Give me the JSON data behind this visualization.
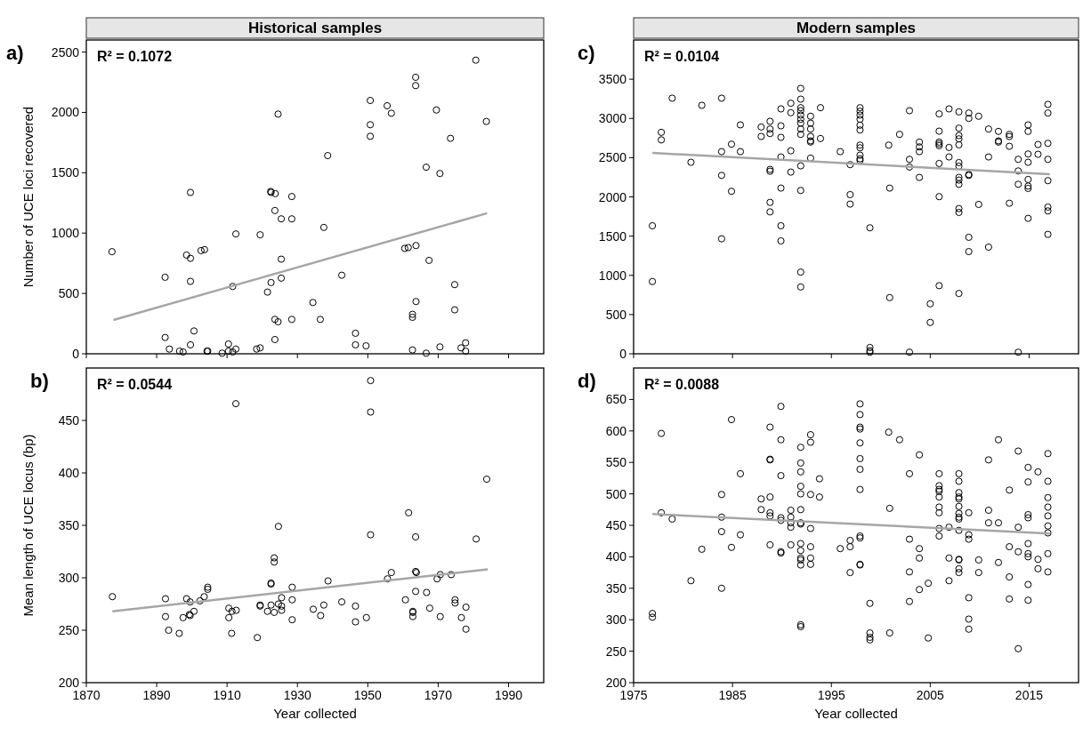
{
  "chart_data": [
    {
      "type": "scatter",
      "title": "Historical samples",
      "ylabel": "Number of UCE loci recovered",
      "annotations": [
        "a)",
        "R² = 0.1072"
      ],
      "xlim": [
        1870,
        2000
      ],
      "xticks": [
        1870,
        1890,
        1910,
        1930,
        1950,
        1970,
        1990
      ],
      "ylim": [
        0,
        2600
      ],
      "yticks": [
        0,
        500,
        1000,
        1500,
        2000,
        2500
      ],
      "tick_labels": "y",
      "series": [
        {
          "marker": "circle",
          "color": "#000000",
          "x": [
            1877.3,
            1892.4,
            1899.6,
            1898.5,
            1899.6,
            1899.6,
            1902.6,
            1903.6,
            1912.5,
            1911.6,
            1919.4,
            1922.4,
            1922.5,
            1923.7,
            1928.4,
            1923.6,
            1925.4,
            1928.4,
            1924.5,
            1938.6,
            1937.5,
            1925.4,
            1925.4,
            1922.5,
            1921.5,
            1934.4,
            1942.6,
            1923.6,
            1924.5,
            1928.4,
            1936.5,
            1923.6,
            1892.4,
            1900.6,
            1893.6,
            1896.5,
            1897.5,
            1899.6,
            1904.3,
            1904.5,
            1908.6,
            1910.4,
            1910.4,
            1911.6,
            1912.5,
            1918.4,
            1919.4,
            1946.5,
            1946.5,
            1949.5,
            1950.7,
            1950.7,
            1950.7,
            1955.5,
            1956.7,
            1963.6,
            1963.6,
            1969.5,
            1980.7,
            1983.7,
            1973.5,
            1966.6,
            1970.5,
            1960.5,
            1961.5,
            1963.7,
            1967.4,
            1963.7,
            1962.7,
            1962.7,
            1974.7,
            1974.7,
            1962.7,
            1966.6,
            1970.5,
            1976.5,
            1977.8,
            1977.8
          ],
          "values": [
            846,
            634,
            1337,
            818,
            791,
            600,
            855,
            863,
            993,
            558,
            986,
            1345,
            1337,
            1327,
            1303,
            1187,
            1118,
            1118,
            1986,
            1642,
            1047,
            784,
            627,
            590,
            511,
            425,
            651,
            285,
            265,
            285,
            285,
            118,
            135,
            189,
            39,
            22,
            15,
            74,
            22,
            22,
            5,
            81,
            22,
            15,
            39,
            39,
            49,
            170,
            74,
            66,
            2099,
            1898,
            1802,
            2055,
            1993,
            2291,
            2222,
            2020,
            2433,
            1925,
            1785,
            1546,
            1494,
            873,
            880,
            897,
            774,
            433,
            327,
            302,
            573,
            364,
            32,
            5,
            57,
            49,
            91,
            22
          ]
        },
        {
          "type": "line",
          "marker": "none",
          "color": "#a6a6a6",
          "x": [
            1877.7,
            1983.9
          ],
          "values": [
            280,
            1165
          ]
        }
      ]
    },
    {
      "type": "scatter",
      "xlabel": "Year collected",
      "ylabel": "Mean length of UCE locus (bp)",
      "annotations": [
        "b)",
        "R² = 0.0544"
      ],
      "xlim": [
        1870,
        2000
      ],
      "xticks": [
        1870,
        1890,
        1910,
        1930,
        1950,
        1970,
        1990
      ],
      "ylim": [
        200,
        500
      ],
      "yticks": [
        200,
        250,
        300,
        350,
        400,
        450
      ],
      "series": [
        {
          "marker": "circle",
          "color": "#000000",
          "x": [
            1877.4,
            1912.5,
            1950.8,
            1950.8,
            1983.8,
            1961.6,
            1963.6,
            1950.8,
            1980.8,
            1924.6,
            1923.4,
            1923.4,
            1922.5,
            1922.5,
            1928.5,
            1904.5,
            1904.5,
            1903.5,
            1902.3,
            1898.5,
            1899.5,
            1892.5,
            1892.5,
            1893.4,
            1896.4,
            1897.5,
            1899.3,
            1899.5,
            1900.6,
            1910.5,
            1910.5,
            1911.4,
            1912.6,
            1911.3,
            1918.6,
            1919.4,
            1919.4,
            1921.5,
            1922.5,
            1923.4,
            1924.6,
            1925.5,
            1925.5,
            1925.5,
            1928.5,
            1928.5,
            1934.5,
            1936.6,
            1937.5,
            1938.7,
            1942.6,
            1946.5,
            1946.5,
            1949.6,
            1955.6,
            1956.7,
            1960.7,
            1962.8,
            1962.8,
            1962.8,
            1963.6,
            1963.8,
            1963.6,
            1966.7,
            1967.6,
            1969.7,
            1970.6,
            1970.6,
            1973.7,
            1974.8,
            1974.8,
            1977.9,
            1976.6,
            1977.9
          ],
          "values": [
            282,
            466,
            488,
            458,
            394,
            362,
            339,
            341,
            337,
            349,
            319,
            315,
            295,
            294,
            291,
            291,
            289,
            282,
            278,
            280,
            277,
            280,
            263,
            250,
            247,
            262,
            265,
            264,
            268,
            271,
            262,
            268,
            269,
            247,
            243,
            274,
            273,
            268,
            274,
            267,
            275,
            281,
            273,
            269,
            279,
            260,
            270,
            264,
            274,
            297,
            277,
            273,
            258,
            262,
            299,
            305,
            279,
            268,
            267,
            263,
            306,
            305,
            287,
            286,
            271,
            299,
            303,
            263,
            303,
            279,
            276,
            272,
            262,
            251
          ]
        },
        {
          "type": "line",
          "marker": "none",
          "color": "#a6a6a6",
          "x": [
            1877.4,
            1984.1
          ],
          "values": [
            268,
            308
          ]
        }
      ]
    },
    {
      "type": "scatter",
      "title": "Modern samples",
      "annotations": [
        "c)",
        "R² = 0.0104"
      ],
      "xlim": [
        1975,
        2020
      ],
      "xticks": [
        1975,
        1985,
        1995,
        2005,
        2015
      ],
      "ylim": [
        0,
        4000
      ],
      "yticks": [
        0,
        500,
        1000,
        1500,
        2000,
        2500,
        3000,
        3500
      ],
      "tick_labels": "y",
      "series": [
        {
          "marker": "circle",
          "color": "#000000",
          "x": [
            1976.9,
            1976.9,
            1977.8,
            1977.8,
            1978.9,
            1980.8,
            1981.9,
            1983.9,
            1983.9,
            1983.9,
            1983.9,
            1984.9,
            1984.9,
            1985.8,
            1985.8,
            1987.9,
            1987.9,
            1988.8,
            1988.8,
            1988.8,
            1988.8,
            1988.8,
            1988.8,
            1988.8,
            1989.9,
            1989.9,
            1989.9,
            1989.9,
            1989.9,
            1989.9,
            1989.9,
            1990.9,
            1990.9,
            1990.9,
            1990.9,
            1991.9,
            1991.9,
            1991.9,
            1991.9,
            1991.9,
            1991.9,
            1991.9,
            1991.9,
            1991.9,
            1991.9,
            1991.9,
            1991.9,
            1991.9,
            1992.9,
            1992.9,
            1992.9,
            1992.9,
            1992.9,
            1992.9,
            1992.9,
            1993.9,
            1993.9,
            1995.9,
            1996.9,
            1996.9,
            1996.9,
            1997.9,
            1997.9,
            1997.9,
            1997.9,
            1997.9,
            1997.9,
            1997.9,
            1997.9,
            1997.9,
            1997.9,
            1997.9,
            1998.9,
            1998.9,
            1998.9,
            1998.9,
            2000.8,
            2000.9,
            2000.9,
            2001.9,
            2002.9,
            2002.9,
            2002.9,
            2002.9,
            2003.9,
            2003.9,
            2003.9,
            2003.9,
            2005.0,
            2005.0,
            2005.9,
            2005.9,
            2005.9,
            2005.9,
            2005.9,
            2005.9,
            2005.9,
            2005.9,
            2006.9,
            2006.9,
            2006.9,
            2007.9,
            2007.9,
            2007.9,
            2007.9,
            2007.9,
            2007.9,
            2007.9,
            2007.9,
            2007.9,
            2007.9,
            2007.9,
            2007.9,
            2007.9,
            2008.9,
            2008.9,
            2008.9,
            2008.9,
            2008.9,
            2008.9,
            2009.9,
            2009.9,
            2010.9,
            2010.9,
            2010.9,
            2011.9,
            2011.9,
            2011.9,
            2013.0,
            2013.0,
            2013.0,
            2013.0,
            2013.9,
            2013.9,
            2013.9,
            2013.9,
            2014.9,
            2014.9,
            2014.9,
            2014.9,
            2014.9,
            2014.9,
            2014.9,
            2014.9,
            2015.9,
            2015.9,
            2016.9,
            2016.9,
            2016.9,
            2016.9,
            2016.9,
            2016.9,
            2016.9,
            2016.9
          ],
          "values": [
            1632,
            921,
            2823,
            2727,
            3258,
            2441,
            3167,
            3258,
            2577,
            2274,
            1466,
            2672,
            2071,
            2918,
            2577,
            2891,
            2770,
            2963,
            2865,
            2808,
            2350,
            2327,
            1930,
            1809,
            3122,
            2906,
            2759,
            2509,
            2112,
            1632,
            1439,
            3194,
            3073,
            2588,
            2316,
            3383,
            3246,
            3137,
            3099,
            3043,
            2990,
            2940,
            2865,
            2797,
            2396,
            2082,
            1041,
            852,
            3028,
            2940,
            2865,
            2770,
            2714,
            2699,
            2494,
            3137,
            2744,
            2577,
            2411,
            2029,
            1908,
            3137,
            3092,
            3043,
            2990,
            2914,
            2853,
            2660,
            2626,
            2532,
            2486,
            2464,
            1606,
            80,
            40,
            20,
            2660,
            2112,
            716,
            2797,
            3099,
            2479,
            2381,
            20,
            2699,
            2637,
            2577,
            2248,
            637,
            399,
            3058,
            2838,
            2699,
            2676,
            2653,
            2426,
            2003,
            868,
            3122,
            2630,
            2509,
            3084,
            2876,
            2782,
            2740,
            2664,
            2437,
            2392,
            2248,
            2214,
            2161,
            1851,
            1802,
            769,
            3069,
            3001,
            2286,
            2274,
            1485,
            1303,
            3028,
            1904,
            2865,
            2509,
            1360,
            2835,
            2714,
            2699,
            2797,
            2770,
            2645,
            1919,
            2479,
            2331,
            2161,
            20,
            2918,
            2835,
            2547,
            2441,
            2222,
            2138,
            2108,
            1726,
            2668,
            2543,
            3179,
            3069,
            2683,
            2479,
            2207,
            1870,
            1821,
            1522
          ]
        },
        {
          "type": "line",
          "marker": "none",
          "color": "#a6a6a6",
          "x": [
            1976.9,
            2017.1
          ],
          "values": [
            2560,
            2290
          ]
        }
      ]
    },
    {
      "type": "scatter",
      "xlabel": "Year collected",
      "annotations": [
        "d)",
        "R² = 0.0088"
      ],
      "xlim": [
        1975,
        2020
      ],
      "xticks": [
        1975,
        1985,
        1995,
        2005,
        2015
      ],
      "ylim": [
        200,
        700
      ],
      "yticks": [
        200,
        250,
        300,
        350,
        400,
        450,
        500,
        550,
        600,
        650
      ],
      "series": [
        {
          "marker": "circle",
          "color": "#000000",
          "x": [
            1976.9,
            1976.9,
            1977.8,
            1977.8,
            1978.9,
            1980.8,
            1981.9,
            1983.9,
            1983.9,
            1983.9,
            1983.9,
            1984.9,
            1984.9,
            1985.8,
            1985.8,
            1987.9,
            1987.9,
            1988.8,
            1988.8,
            1988.8,
            1988.8,
            1988.8,
            1988.8,
            1988.8,
            1989.9,
            1989.9,
            1989.9,
            1989.9,
            1989.9,
            1989.9,
            1989.9,
            1990.9,
            1990.9,
            1990.9,
            1990.9,
            1990.9,
            1991.9,
            1991.9,
            1991.9,
            1991.9,
            1991.9,
            1991.9,
            1991.9,
            1991.9,
            1991.9,
            1991.9,
            1991.9,
            1991.9,
            1991.9,
            1991.9,
            1991.9,
            1992.9,
            1992.9,
            1992.9,
            1992.9,
            1992.9,
            1992.9,
            1992.9,
            1993.8,
            1993.8,
            1995.9,
            1996.9,
            1996.9,
            1996.9,
            1997.9,
            1997.9,
            1997.9,
            1997.9,
            1997.9,
            1997.9,
            1997.9,
            1997.9,
            1997.9,
            1997.9,
            1997.9,
            1997.9,
            1998.9,
            1998.9,
            1998.9,
            1998.9,
            2000.8,
            2000.9,
            2000.9,
            2001.9,
            2002.9,
            2002.9,
            2002.9,
            2002.9,
            2003.9,
            2003.9,
            2003.9,
            2003.9,
            2004.8,
            2004.8,
            2005.9,
            2005.9,
            2005.9,
            2005.9,
            2005.9,
            2005.9,
            2005.9,
            2005.9,
            2005.9,
            2006.9,
            2006.9,
            2006.9,
            2007.9,
            2007.9,
            2007.9,
            2007.9,
            2007.9,
            2007.9,
            2007.9,
            2007.9,
            2007.9,
            2007.9,
            2007.9,
            2007.9,
            2007.9,
            2007.9,
            2008.9,
            2008.9,
            2008.9,
            2008.9,
            2008.9,
            2008.9,
            2009.9,
            2009.9,
            2010.9,
            2010.9,
            2010.9,
            2011.9,
            2011.9,
            2011.9,
            2013.0,
            2013.0,
            2013.0,
            2013.0,
            2013.9,
            2013.9,
            2013.9,
            2013.9,
            2014.9,
            2014.9,
            2014.9,
            2014.9,
            2014.9,
            2014.9,
            2014.9,
            2014.9,
            2014.9,
            2015.9,
            2015.9,
            2015.9,
            2016.9,
            2016.9,
            2016.9,
            2016.9,
            2016.9,
            2016.9,
            2016.9,
            2016.9,
            2016.9
          ],
          "values": [
            310,
            304,
            596,
            470,
            460,
            362,
            412,
            499,
            463,
            440,
            350,
            618,
            415,
            532,
            435,
            492,
            475,
            606,
            555,
            554,
            495,
            470,
            465,
            419,
            639,
            586,
            529,
            462,
            458,
            408,
            406,
            474,
            463,
            454,
            447,
            419,
            574,
            549,
            535,
            512,
            500,
            475,
            454,
            452,
            421,
            410,
            398,
            395,
            387,
            292,
            289,
            594,
            582,
            499,
            445,
            416,
            398,
            388,
            524,
            495,
            413,
            426,
            416,
            375,
            643,
            626,
            606,
            603,
            581,
            556,
            539,
            507,
            433,
            430,
            388,
            387,
            326,
            279,
            272,
            268,
            598,
            477,
            279,
            586,
            532,
            428,
            376,
            329,
            562,
            413,
            398,
            348,
            358,
            271,
            532,
            513,
            507,
            504,
            495,
            479,
            470,
            445,
            433,
            447,
            398,
            362,
            532,
            520,
            502,
            495,
            492,
            480,
            469,
            463,
            460,
            442,
            396,
            395,
            381,
            375,
            470,
            435,
            428,
            335,
            301,
            285,
            395,
            375,
            554,
            474,
            454,
            586,
            454,
            391,
            506,
            416,
            368,
            333,
            568,
            447,
            408,
            254,
            542,
            519,
            467,
            462,
            421,
            405,
            400,
            356,
            331,
            535,
            396,
            381,
            564,
            520,
            494,
            479,
            465,
            449,
            438,
            405,
            376
          ]
        },
        {
          "type": "line",
          "marker": "none",
          "color": "#a6a6a6",
          "x": [
            1976.9,
            2017.1
          ],
          "values": [
            468,
            437
          ]
        }
      ]
    }
  ]
}
